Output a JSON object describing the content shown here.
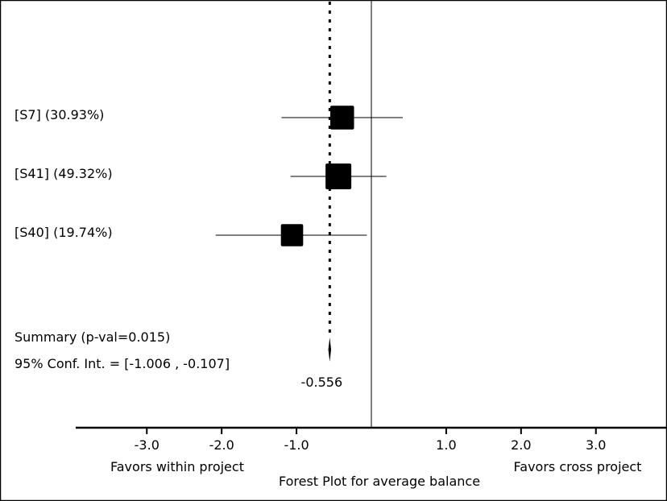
{
  "chart_data": {
    "type": "forest",
    "title": "Forest Plot for average balance",
    "xlabel_left": "Favors within project",
    "xlabel_right": "Favors cross project",
    "xlim": [
      -3.95,
      3.95
    ],
    "x_ticks": [
      {
        "value": -3.0,
        "label": "-3.0"
      },
      {
        "value": -2.0,
        "label": "-2.0"
      },
      {
        "value": -1.0,
        "label": "-1.0"
      },
      {
        "value": 1.0,
        "label": "1.0"
      },
      {
        "value": 2.0,
        "label": "2.0"
      },
      {
        "value": 3.0,
        "label": "3.0"
      }
    ],
    "null_line": 0,
    "studies": [
      {
        "label": "[S7] (30.93%)",
        "estimate": -0.39,
        "ci": [
          -1.2,
          0.42
        ],
        "weight": 30.93
      },
      {
        "label": "[S41] (49.32%)",
        "estimate": -0.44,
        "ci": [
          -1.08,
          0.2
        ],
        "weight": 49.32
      },
      {
        "label": "[S40] (19.74%)",
        "estimate": -1.06,
        "ci": [
          -2.08,
          -0.06
        ],
        "weight": 19.74
      }
    ],
    "summary": {
      "label": "Summary (p-val=0.015)",
      "ci_label": "95% Conf. Int. = [-1.006 , -0.107]",
      "estimate": -0.556,
      "estimate_label": "-0.556",
      "ci": [
        -1.006,
        -0.107
      ]
    }
  }
}
